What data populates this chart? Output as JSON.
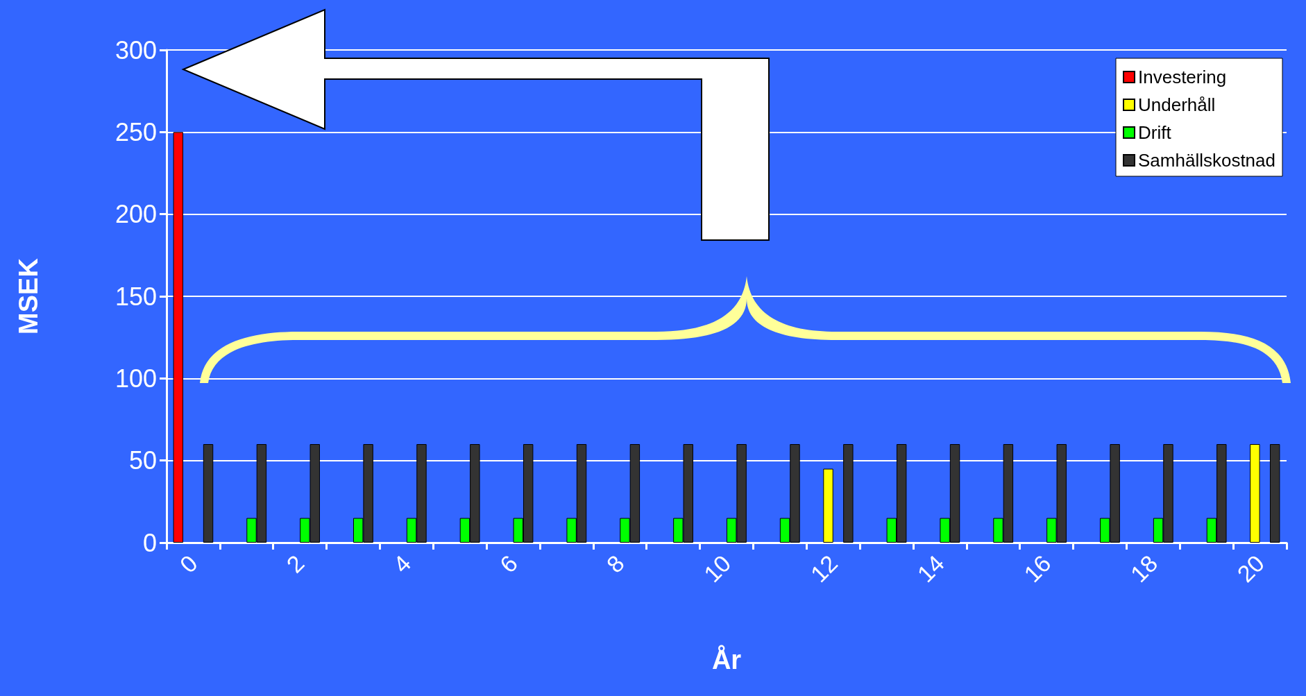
{
  "chart_data": {
    "type": "bar",
    "xlabel": "År",
    "ylabel": "MSEK",
    "categories": [
      "0",
      null,
      "2",
      null,
      "4",
      null,
      "6",
      null,
      "8",
      null,
      "10",
      null,
      "12",
      null,
      "14",
      null,
      "16",
      null,
      "18",
      null,
      "20"
    ],
    "series": [
      {
        "name": "Investering",
        "color": "#ff0000",
        "values": [
          250,
          null,
          null,
          null,
          null,
          null,
          null,
          null,
          null,
          null,
          null,
          null,
          null,
          null,
          null,
          null,
          null,
          null,
          null,
          null,
          null
        ]
      },
      {
        "name": "Underhåll",
        "color": "#ffff00",
        "values": [
          null,
          null,
          null,
          null,
          null,
          null,
          null,
          null,
          null,
          null,
          null,
          null,
          45,
          null,
          null,
          null,
          null,
          null,
          null,
          null,
          60
        ]
      },
      {
        "name": "Drift",
        "color": "#00ff00",
        "values": [
          null,
          15,
          15,
          15,
          15,
          15,
          15,
          15,
          15,
          15,
          15,
          15,
          null,
          15,
          15,
          15,
          15,
          15,
          15,
          15,
          null
        ]
      },
      {
        "name": "Samhällskostnad",
        "color": "#333333",
        "values": [
          60,
          60,
          60,
          60,
          60,
          60,
          60,
          60,
          60,
          60,
          60,
          60,
          60,
          60,
          60,
          60,
          60,
          60,
          60,
          60,
          60
        ]
      }
    ],
    "ylim": [
      0,
      300
    ],
    "yticks": [
      0,
      50,
      100,
      150,
      200,
      250,
      300
    ],
    "grid": "y",
    "legend": "top right"
  }
}
